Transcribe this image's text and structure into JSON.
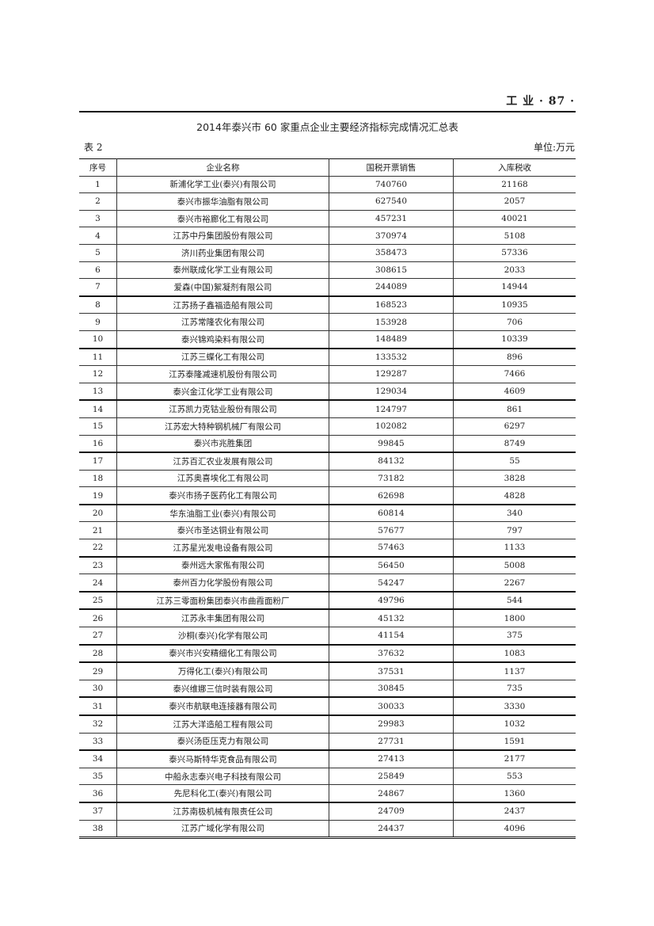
{
  "running_head": "工 业 · 87 ·",
  "title": "2014年泰兴市 60 家重点企业主要经济指标完成情况汇总表",
  "table_no": "表 2",
  "unit": "单位:万元",
  "table": {
    "headers": [
      "序号",
      "企业名称",
      "国税开票销售",
      "入库税收"
    ],
    "rows": [
      [
        "1",
        "新浦化学工业(泰兴)有限公司",
        "740760",
        "21168"
      ],
      [
        "2",
        "泰兴市振华油脂有限公司",
        "627540",
        "2057"
      ],
      [
        "3",
        "泰兴市裕廊化工有限公司",
        "457231",
        "40021"
      ],
      [
        "4",
        "江苏中丹集团股份有限公司",
        "370974",
        "5108"
      ],
      [
        "5",
        "济川药业集团有限公司",
        "358473",
        "57336"
      ],
      [
        "6",
        "泰州联成化学工业有限公司",
        "308615",
        "2033"
      ],
      [
        "7",
        "爱森(中国)絮凝剂有限公司",
        "244089",
        "14944"
      ],
      [
        "8",
        "江苏扬子鑫福造船有限公司",
        "168523",
        "10935"
      ],
      [
        "9",
        "江苏常隆农化有限公司",
        "153928",
        "706"
      ],
      [
        "10",
        "泰兴锦鸡染料有限公司",
        "148489",
        "10339"
      ],
      [
        "11",
        "江苏三蝶化工有限公司",
        "133532",
        "896"
      ],
      [
        "12",
        "江苏泰隆减速机股份有限公司",
        "129287",
        "7466"
      ],
      [
        "13",
        "泰兴金江化学工业有限公司",
        "129034",
        "4609"
      ],
      [
        "14",
        "江苏凯力克钴业股份有限公司",
        "124797",
        "861"
      ],
      [
        "15",
        "江苏宏大特种钢机械厂有限公司",
        "102082",
        "6297"
      ],
      [
        "16",
        "泰兴市兆胜集团",
        "99845",
        "8749"
      ],
      [
        "17",
        "江苏百汇农业发展有限公司",
        "84132",
        "55"
      ],
      [
        "18",
        "江苏奥喜埃化工有限公司",
        "73182",
        "3828"
      ],
      [
        "19",
        "泰兴市扬子医药化工有限公司",
        "62698",
        "4828"
      ],
      [
        "20",
        "华东油脂工业(泰兴)有限公司",
        "60814",
        "340"
      ],
      [
        "21",
        "泰兴市圣达铜业有限公司",
        "57677",
        "797"
      ],
      [
        "22",
        "江苏星光发电设备有限公司",
        "57463",
        "1133"
      ],
      [
        "23",
        "泰州远大家俬有限公司",
        "56450",
        "5008"
      ],
      [
        "24",
        "泰州百力化学股份有限公司",
        "54247",
        "2267"
      ],
      [
        "25",
        "江苏三零面粉集团泰兴市曲霞面粉厂",
        "49796",
        "544"
      ],
      [
        "26",
        "江苏永丰集团有限公司",
        "45132",
        "1800"
      ],
      [
        "27",
        "沙桐(泰兴)化学有限公司",
        "41154",
        "375"
      ],
      [
        "28",
        "泰兴市兴安精细化工有限公司",
        "37632",
        "1083"
      ],
      [
        "29",
        "万得化工(泰兴)有限公司",
        "37531",
        "1137"
      ],
      [
        "30",
        "泰兴维娜三信时装有限公司",
        "30845",
        "735"
      ],
      [
        "31",
        "泰兴市航联电连接器有限公司",
        "30033",
        "3330"
      ],
      [
        "32",
        "江苏大洋造船工程有限公司",
        "29983",
        "1032"
      ],
      [
        "33",
        "泰兴汤臣压克力有限公司",
        "27731",
        "1591"
      ],
      [
        "34",
        "泰兴马斯特华克食品有限公司",
        "27413",
        "2177"
      ],
      [
        "35",
        "中船永志泰兴电子科技有限公司",
        "25849",
        "553"
      ],
      [
        "36",
        "先尼科化工(泰兴)有限公司",
        "24867",
        "1360"
      ],
      [
        "37",
        "江苏南极机械有限责任公司",
        "24709",
        "2437"
      ],
      [
        "38",
        "江苏广域化学有限公司",
        "24437",
        "4096"
      ]
    ]
  }
}
